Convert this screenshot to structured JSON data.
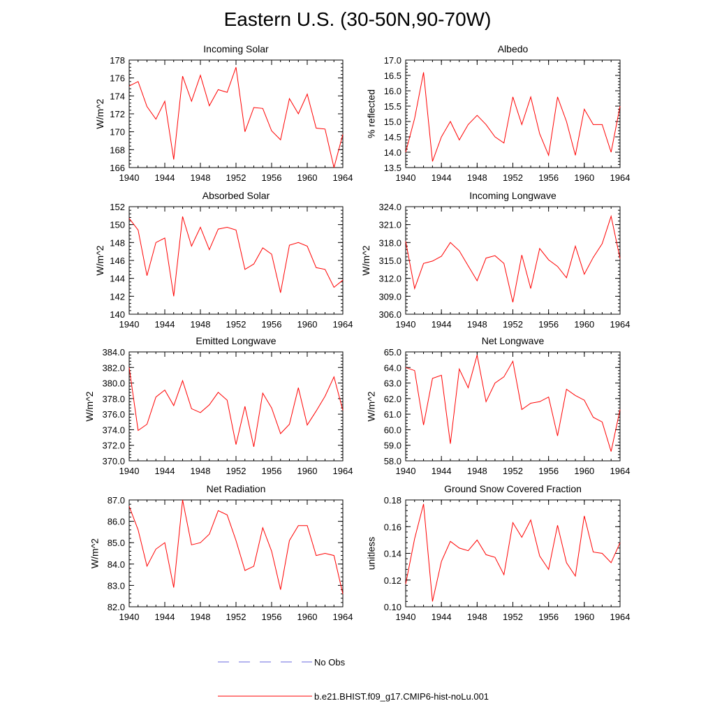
{
  "figure": {
    "title": "Eastern U.S. (30-50N,90-70W)",
    "legend": [
      {
        "label": "No Obs",
        "color": "#6a6adf",
        "style": "dashed"
      },
      {
        "label": "b.e21.BHIST.f09_g17.CMIP6-hist-noLu.001",
        "color": "#ff0000",
        "style": "solid"
      }
    ]
  },
  "chart_data": [
    {
      "type": "line",
      "title": "Incoming Solar",
      "ylabel": "W/m^2",
      "xlim": [
        1940,
        1964
      ],
      "ylim": [
        166,
        178
      ],
      "yticks": [
        166,
        168,
        170,
        172,
        174,
        176,
        178
      ],
      "ytick_labels": [
        "166",
        "168",
        "170",
        "172",
        "174",
        "176",
        "178"
      ],
      "xticks": [
        1940,
        1944,
        1948,
        1952,
        1956,
        1960,
        1964
      ],
      "x": [
        1940,
        1941,
        1942,
        1943,
        1944,
        1945,
        1946,
        1947,
        1948,
        1949,
        1950,
        1951,
        1952,
        1953,
        1954,
        1955,
        1956,
        1957,
        1958,
        1959,
        1960,
        1961,
        1962,
        1963,
        1964
      ],
      "series": [
        {
          "name": "b.e21.BHIST.f09_g17.CMIP6-hist-noLu.001",
          "color": "#ff0000",
          "values": [
            175.1,
            175.6,
            172.8,
            171.4,
            173.4,
            166.9,
            176.2,
            173.4,
            176.3,
            172.9,
            174.7,
            174.4,
            177.2,
            170.0,
            172.7,
            172.6,
            170.1,
            169.1,
            173.7,
            172.0,
            174.2,
            170.4,
            170.3,
            166.0,
            169.7
          ]
        }
      ]
    },
    {
      "type": "line",
      "title": "Albedo",
      "ylabel": "% reflected",
      "xlim": [
        1940,
        1964
      ],
      "ylim": [
        13.5,
        17.0
      ],
      "yticks": [
        13.5,
        14.0,
        14.5,
        15.0,
        15.5,
        16.0,
        16.5,
        17.0
      ],
      "ytick_labels": [
        "13.5",
        "14.0",
        "14.5",
        "15.0",
        "15.5",
        "16.0",
        "16.5",
        "17.0"
      ],
      "xticks": [
        1940,
        1944,
        1948,
        1952,
        1956,
        1960,
        1964
      ],
      "x": [
        1940,
        1941,
        1942,
        1943,
        1944,
        1945,
        1946,
        1947,
        1948,
        1949,
        1950,
        1951,
        1952,
        1953,
        1954,
        1955,
        1956,
        1957,
        1958,
        1959,
        1960,
        1961,
        1962,
        1963,
        1964
      ],
      "series": [
        {
          "name": "b.e21.BHIST.f09_g17.CMIP6-hist-noLu.001",
          "color": "#ff0000",
          "values": [
            14.0,
            15.1,
            16.6,
            13.7,
            14.5,
            15.0,
            14.4,
            14.9,
            15.2,
            14.9,
            14.5,
            14.3,
            15.8,
            14.9,
            15.8,
            14.6,
            13.9,
            15.8,
            15.0,
            13.9,
            15.4,
            14.9,
            14.9,
            14.0,
            15.5
          ]
        }
      ]
    },
    {
      "type": "line",
      "title": "Absorbed Solar",
      "ylabel": "W/m^2",
      "xlim": [
        1940,
        1964
      ],
      "ylim": [
        140,
        152
      ],
      "yticks": [
        140,
        142,
        144,
        146,
        148,
        150,
        152
      ],
      "ytick_labels": [
        "140",
        "142",
        "144",
        "146",
        "148",
        "150",
        "152"
      ],
      "xticks": [
        1940,
        1944,
        1948,
        1952,
        1956,
        1960,
        1964
      ],
      "x": [
        1940,
        1941,
        1942,
        1943,
        1944,
        1945,
        1946,
        1947,
        1948,
        1949,
        1950,
        1951,
        1952,
        1953,
        1954,
        1955,
        1956,
        1957,
        1958,
        1959,
        1960,
        1961,
        1962,
        1963,
        1964
      ],
      "series": [
        {
          "name": "b.e21.BHIST.f09_g17.CMIP6-hist-noLu.001",
          "color": "#ff0000",
          "values": [
            150.7,
            149.4,
            144.3,
            148.0,
            148.5,
            142.0,
            150.9,
            147.6,
            149.7,
            147.2,
            149.5,
            149.7,
            149.4,
            145.0,
            145.6,
            147.4,
            146.7,
            142.4,
            147.7,
            148.0,
            147.6,
            145.2,
            145.0,
            143.0,
            143.8
          ]
        }
      ]
    },
    {
      "type": "line",
      "title": "Incoming Longwave",
      "ylabel": "W/m^2",
      "xlim": [
        1940,
        1964
      ],
      "ylim": [
        306.0,
        324.0
      ],
      "yticks": [
        306,
        309,
        312,
        315,
        318,
        321,
        324
      ],
      "ytick_labels": [
        "306.0",
        "309.0",
        "312.0",
        "315.0",
        "318.0",
        "321.0",
        "324.0"
      ],
      "xticks": [
        1940,
        1944,
        1948,
        1952,
        1956,
        1960,
        1964
      ],
      "x": [
        1940,
        1941,
        1942,
        1943,
        1944,
        1945,
        1946,
        1947,
        1948,
        1949,
        1950,
        1951,
        1952,
        1953,
        1954,
        1955,
        1956,
        1957,
        1958,
        1959,
        1960,
        1961,
        1962,
        1963,
        1964
      ],
      "series": [
        {
          "name": "b.e21.BHIST.f09_g17.CMIP6-hist-noLu.001",
          "color": "#ff0000",
          "values": [
            318.2,
            310.3,
            314.5,
            314.9,
            315.7,
            318.0,
            316.6,
            314.1,
            311.6,
            315.4,
            315.8,
            314.5,
            308.0,
            315.9,
            310.3,
            317.0,
            315.1,
            314.0,
            312.1,
            317.4,
            312.7,
            315.5,
            317.8,
            322.4,
            315.3
          ]
        }
      ]
    },
    {
      "type": "line",
      "title": "Emitted Longwave",
      "ylabel": "W/m^2",
      "xlim": [
        1940,
        1964
      ],
      "ylim": [
        370.0,
        384.0
      ],
      "yticks": [
        370,
        372,
        374,
        376,
        378,
        380,
        382,
        384
      ],
      "ytick_labels": [
        "370.0",
        "372.0",
        "374.0",
        "376.0",
        "378.0",
        "380.0",
        "382.0",
        "384.0"
      ],
      "xticks": [
        1940,
        1944,
        1948,
        1952,
        1956,
        1960,
        1964
      ],
      "x": [
        1940,
        1941,
        1942,
        1943,
        1944,
        1945,
        1946,
        1947,
        1948,
        1949,
        1950,
        1951,
        1952,
        1953,
        1954,
        1955,
        1956,
        1957,
        1958,
        1959,
        1960,
        1961,
        1962,
        1963,
        1964
      ],
      "series": [
        {
          "name": "b.e21.BHIST.f09_g17.CMIP6-hist-noLu.001",
          "color": "#ff0000",
          "values": [
            382.0,
            373.9,
            374.7,
            378.2,
            379.1,
            377.1,
            380.3,
            376.7,
            376.2,
            377.2,
            378.8,
            377.8,
            372.1,
            377.0,
            371.8,
            378.7,
            376.8,
            373.5,
            374.7,
            379.4,
            374.6,
            376.4,
            378.3,
            380.8,
            376.5
          ]
        }
      ]
    },
    {
      "type": "line",
      "title": "Net Longwave",
      "ylabel": "W/m^2",
      "xlim": [
        1940,
        1964
      ],
      "ylim": [
        58.0,
        65.0
      ],
      "yticks": [
        58,
        59,
        60,
        61,
        62,
        63,
        64,
        65
      ],
      "ytick_labels": [
        "58.0",
        "59.0",
        "60.0",
        "61.0",
        "62.0",
        "63.0",
        "64.0",
        "65.0"
      ],
      "xticks": [
        1940,
        1944,
        1948,
        1952,
        1956,
        1960,
        1964
      ],
      "x": [
        1940,
        1941,
        1942,
        1943,
        1944,
        1945,
        1946,
        1947,
        1948,
        1949,
        1950,
        1951,
        1952,
        1953,
        1954,
        1955,
        1956,
        1957,
        1958,
        1959,
        1960,
        1961,
        1962,
        1963,
        1964
      ],
      "series": [
        {
          "name": "b.e21.BHIST.f09_g17.CMIP6-hist-noLu.001",
          "color": "#ff0000",
          "values": [
            64.0,
            63.8,
            60.3,
            63.3,
            63.5,
            59.1,
            63.9,
            62.7,
            64.8,
            61.8,
            63.0,
            63.4,
            64.4,
            61.3,
            61.7,
            61.8,
            62.1,
            59.6,
            62.6,
            62.2,
            61.9,
            60.8,
            60.5,
            58.6,
            61.3
          ]
        }
      ]
    },
    {
      "type": "line",
      "title": "Net Radiation",
      "ylabel": "W/m^2",
      "xlim": [
        1940,
        1964
      ],
      "ylim": [
        82.0,
        87.0
      ],
      "yticks": [
        82,
        83,
        84,
        85,
        86,
        87
      ],
      "ytick_labels": [
        "82.0",
        "83.0",
        "84.0",
        "85.0",
        "86.0",
        "87.0"
      ],
      "xticks": [
        1940,
        1944,
        1948,
        1952,
        1956,
        1960,
        1964
      ],
      "x": [
        1940,
        1941,
        1942,
        1943,
        1944,
        1945,
        1946,
        1947,
        1948,
        1949,
        1950,
        1951,
        1952,
        1953,
        1954,
        1955,
        1956,
        1957,
        1958,
        1959,
        1960,
        1961,
        1962,
        1963,
        1964
      ],
      "series": [
        {
          "name": "b.e21.BHIST.f09_g17.CMIP6-hist-noLu.001",
          "color": "#ff0000",
          "values": [
            86.7,
            85.6,
            83.9,
            84.7,
            85.0,
            82.9,
            87.0,
            84.9,
            85.0,
            85.4,
            86.5,
            86.3,
            85.1,
            83.7,
            83.9,
            85.7,
            84.6,
            82.8,
            85.1,
            85.8,
            85.8,
            84.4,
            84.5,
            84.4,
            82.6
          ]
        }
      ]
    },
    {
      "type": "line",
      "title": "Ground Snow Covered Fraction",
      "ylabel": "unitless",
      "xlim": [
        1940,
        1964
      ],
      "ylim": [
        0.1,
        0.18
      ],
      "yticks": [
        0.1,
        0.12,
        0.14,
        0.16,
        0.18
      ],
      "ytick_labels": [
        "0.10",
        "0.12",
        "0.14",
        "0.16",
        "0.18"
      ],
      "xticks": [
        1940,
        1944,
        1948,
        1952,
        1956,
        1960,
        1964
      ],
      "x": [
        1940,
        1941,
        1942,
        1943,
        1944,
        1945,
        1946,
        1947,
        1948,
        1949,
        1950,
        1951,
        1952,
        1953,
        1954,
        1955,
        1956,
        1957,
        1958,
        1959,
        1960,
        1961,
        1962,
        1963,
        1964
      ],
      "series": [
        {
          "name": "b.e21.BHIST.f09_g17.CMIP6-hist-noLu.001",
          "color": "#ff0000",
          "values": [
            0.117,
            0.151,
            0.177,
            0.104,
            0.134,
            0.149,
            0.144,
            0.142,
            0.15,
            0.139,
            0.137,
            0.124,
            0.163,
            0.152,
            0.165,
            0.138,
            0.128,
            0.161,
            0.133,
            0.123,
            0.168,
            0.141,
            0.14,
            0.133,
            0.148
          ]
        }
      ]
    }
  ]
}
